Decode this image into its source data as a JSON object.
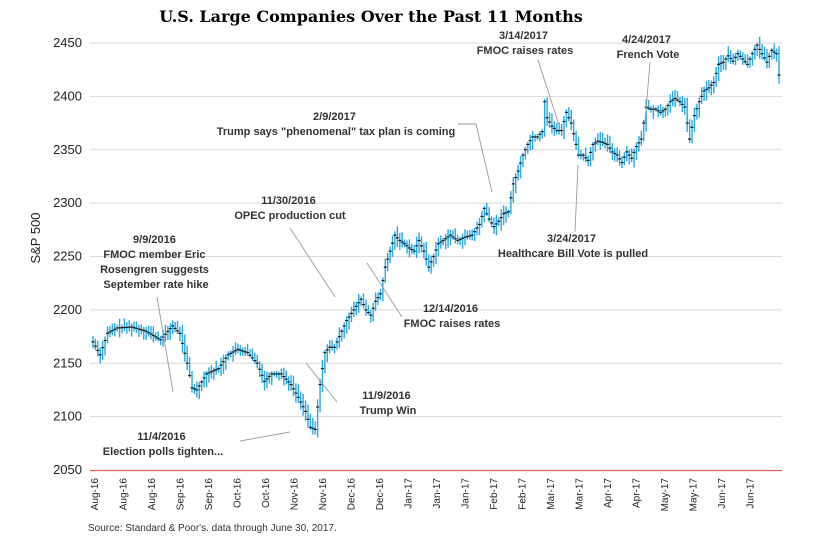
{
  "chart_data": {
    "type": "ohlc",
    "title": "U.S. Large Companies Over the Past 11 Months",
    "ylabel": "S&P 500",
    "xlabel": "",
    "ylim": [
      2050,
      2460
    ],
    "yticks": [
      2050,
      2100,
      2150,
      2200,
      2250,
      2300,
      2350,
      2400,
      2450
    ],
    "xtick_labels": [
      "Aug-16",
      "Aug-16",
      "Aug-16",
      "Sep-16",
      "Sep-16",
      "Oct-16",
      "Oct-16",
      "Nov-16",
      "Nov-16",
      "Dec-16",
      "Dec-16",
      "Jan-17",
      "Jan-17",
      "Jan-17",
      "Feb-17",
      "Feb-17",
      "Mar-17",
      "Mar-17",
      "Apr-17",
      "Apr-17",
      "May-17",
      "May-17",
      "Jun-17",
      "Jun-17"
    ],
    "grid": "horizontal",
    "series_color": "#29a8e0",
    "baseline_color": "#e06060",
    "close_path": [
      [
        0,
        2170
      ],
      [
        3,
        2158
      ],
      [
        6,
        2178
      ],
      [
        10,
        2183
      ],
      [
        16,
        2184
      ],
      [
        22,
        2180
      ],
      [
        28,
        2172
      ],
      [
        33,
        2185
      ],
      [
        36,
        2178
      ],
      [
        39,
        2150
      ],
      [
        41,
        2127
      ],
      [
        43,
        2125
      ],
      [
        47,
        2140
      ],
      [
        52,
        2145
      ],
      [
        56,
        2158
      ],
      [
        60,
        2163
      ],
      [
        64,
        2160
      ],
      [
        68,
        2150
      ],
      [
        71,
        2133
      ],
      [
        74,
        2140
      ],
      [
        78,
        2140
      ],
      [
        82,
        2130
      ],
      [
        85,
        2118
      ],
      [
        88,
        2105
      ],
      [
        90,
        2090
      ],
      [
        92,
        2088
      ],
      [
        94,
        2130
      ],
      [
        96,
        2160
      ],
      [
        98,
        2165
      ],
      [
        100,
        2165
      ],
      [
        102,
        2175
      ],
      [
        105,
        2190
      ],
      [
        108,
        2200
      ],
      [
        111,
        2210
      ],
      [
        113,
        2200
      ],
      [
        115,
        2195
      ],
      [
        117,
        2208
      ],
      [
        119,
        2215
      ],
      [
        121,
        2240
      ],
      [
        123,
        2255
      ],
      [
        125,
        2270
      ],
      [
        127,
        2265
      ],
      [
        129,
        2262
      ],
      [
        131,
        2258
      ],
      [
        133,
        2255
      ],
      [
        135,
        2265
      ],
      [
        137,
        2255
      ],
      [
        139,
        2240
      ],
      [
        141,
        2250
      ],
      [
        143,
        2262
      ],
      [
        145,
        2265
      ],
      [
        148,
        2270
      ],
      [
        151,
        2265
      ],
      [
        154,
        2268
      ],
      [
        157,
        2270
      ],
      [
        160,
        2280
      ],
      [
        162,
        2295
      ],
      [
        164,
        2285
      ],
      [
        166,
        2278
      ],
      [
        168,
        2283
      ],
      [
        170,
        2290
      ],
      [
        172,
        2292
      ],
      [
        174,
        2318
      ],
      [
        176,
        2330
      ],
      [
        178,
        2345
      ],
      [
        180,
        2355
      ],
      [
        182,
        2362
      ],
      [
        184,
        2362
      ],
      [
        186,
        2367
      ],
      [
        187,
        2395
      ],
      [
        188,
        2380
      ],
      [
        190,
        2372
      ],
      [
        192,
        2368
      ],
      [
        194,
        2368
      ],
      [
        196,
        2385
      ],
      [
        198,
        2375
      ],
      [
        199,
        2365
      ],
      [
        201,
        2345
      ],
      [
        203,
        2345
      ],
      [
        205,
        2340
      ],
      [
        207,
        2355
      ],
      [
        209,
        2358
      ],
      [
        211,
        2357
      ],
      [
        213,
        2355
      ],
      [
        215,
        2348
      ],
      [
        217,
        2345
      ],
      [
        219,
        2338
      ],
      [
        221,
        2348
      ],
      [
        223,
        2342
      ],
      [
        225,
        2353
      ],
      [
        227,
        2360
      ],
      [
        229,
        2390
      ],
      [
        231,
        2388
      ],
      [
        233,
        2388
      ],
      [
        235,
        2385
      ],
      [
        237,
        2388
      ],
      [
        239,
        2395
      ],
      [
        241,
        2398
      ],
      [
        243,
        2395
      ],
      [
        245,
        2390
      ],
      [
        247,
        2360
      ],
      [
        249,
        2382
      ],
      [
        251,
        2395
      ],
      [
        253,
        2405
      ],
      [
        255,
        2408
      ],
      [
        257,
        2413
      ],
      [
        259,
        2430
      ],
      [
        261,
        2432
      ],
      [
        263,
        2438
      ],
      [
        265,
        2433
      ],
      [
        267,
        2440
      ],
      [
        269,
        2435
      ],
      [
        271,
        2430
      ],
      [
        273,
        2440
      ],
      [
        275,
        2448
      ],
      [
        277,
        2440
      ],
      [
        279,
        2432
      ],
      [
        281,
        2443
      ],
      [
        283,
        2440
      ],
      [
        284,
        2420
      ]
    ],
    "annotations": [
      {
        "lines": [
          "11/4/2016",
          "Election polls tighten..."
        ]
      },
      {
        "lines": [
          "9/9/2016",
          "FMOC member Eric",
          "Rosengren suggests",
          "September rate hike"
        ]
      },
      {
        "lines": [
          "11/9/2016",
          "Trump Win"
        ]
      },
      {
        "lines": [
          "11/30/2016",
          "OPEC production cut"
        ]
      },
      {
        "lines": [
          "12/14/2016",
          "FMOC raises rates"
        ]
      },
      {
        "lines": [
          "2/9/2017",
          "Trump says \"phenomenal\" tax plan is coming"
        ]
      },
      {
        "lines": [
          "3/14/2017",
          "FMOC raises rates"
        ]
      },
      {
        "lines": [
          "3/24/2017",
          "Healthcare Bill Vote is pulled"
        ]
      },
      {
        "lines": [
          "4/24/2017",
          "French Vote"
        ]
      }
    ]
  },
  "source": "Source: Standard & Poor's. data through June 30, 2017."
}
